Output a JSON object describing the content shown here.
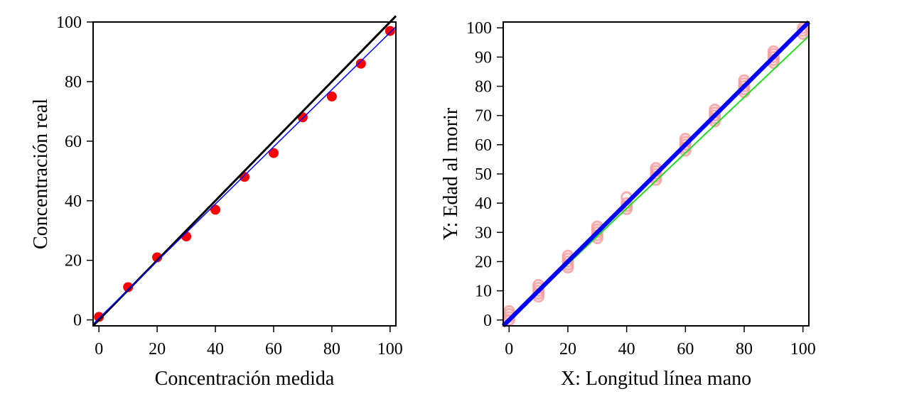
{
  "chart_data": [
    {
      "type": "scatter",
      "title": "",
      "xlabel": "Concentración medida",
      "ylabel": "Concentración real",
      "xlim": [
        -2,
        102
      ],
      "ylim": [
        -2,
        100
      ],
      "x_ticks": [
        "0",
        "20",
        "40",
        "60",
        "80",
        "100"
      ],
      "y_ticks": [
        "0",
        "20",
        "40",
        "60",
        "80",
        "100"
      ],
      "grid": false,
      "legend": "none",
      "points_color": "#ff0000",
      "points": [
        [
          0,
          1
        ],
        [
          10,
          11
        ],
        [
          20,
          21
        ],
        [
          30,
          28
        ],
        [
          40,
          37
        ],
        [
          50,
          48
        ],
        [
          60,
          56
        ],
        [
          70,
          68
        ],
        [
          80,
          75
        ],
        [
          90,
          86
        ],
        [
          100,
          97
        ]
      ],
      "lines": [
        {
          "color": "#000000",
          "width": 3,
          "from": [
            -2,
            -2
          ],
          "to": [
            102,
            102
          ]
        },
        {
          "color": "#0000ff",
          "width": 1.5,
          "from": [
            -2,
            -1.4
          ],
          "to": [
            102,
            98.4
          ]
        }
      ]
    },
    {
      "type": "scatter",
      "title": "",
      "xlabel": "X: Longitud línea mano",
      "ylabel": "Y: Edad al morir",
      "xlim": [
        -2,
        102
      ],
      "ylim": [
        -2,
        102
      ],
      "x_ticks": [
        "0",
        "20",
        "40",
        "60",
        "80",
        "100"
      ],
      "y_ticks": [
        "0",
        "10",
        "20",
        "30",
        "40",
        "50",
        "60",
        "70",
        "80",
        "90",
        "100"
      ],
      "grid": false,
      "legend": "none",
      "points_color": "#f4a0a0",
      "points": [
        [
          0,
          0
        ],
        [
          0,
          1
        ],
        [
          0,
          2
        ],
        [
          0,
          3
        ],
        [
          10,
          8
        ],
        [
          10,
          9
        ],
        [
          10,
          10
        ],
        [
          10,
          11
        ],
        [
          10,
          12
        ],
        [
          20,
          18
        ],
        [
          20,
          19
        ],
        [
          20,
          20
        ],
        [
          20,
          21
        ],
        [
          20,
          22
        ],
        [
          30,
          28
        ],
        [
          30,
          29
        ],
        [
          30,
          30
        ],
        [
          30,
          31
        ],
        [
          30,
          32
        ],
        [
          40,
          38
        ],
        [
          40,
          39
        ],
        [
          40,
          40
        ],
        [
          40,
          42
        ],
        [
          50,
          48
        ],
        [
          50,
          49
        ],
        [
          50,
          50
        ],
        [
          50,
          51
        ],
        [
          50,
          52
        ],
        [
          60,
          58
        ],
        [
          60,
          59
        ],
        [
          60,
          60
        ],
        [
          60,
          61
        ],
        [
          60,
          62
        ],
        [
          70,
          68
        ],
        [
          70,
          69
        ],
        [
          70,
          70
        ],
        [
          70,
          71
        ],
        [
          70,
          72
        ],
        [
          80,
          78
        ],
        [
          80,
          79
        ],
        [
          80,
          80
        ],
        [
          80,
          81
        ],
        [
          80,
          82
        ],
        [
          90,
          88
        ],
        [
          90,
          89
        ],
        [
          90,
          90
        ],
        [
          90,
          91
        ],
        [
          90,
          92
        ],
        [
          100,
          98
        ],
        [
          100,
          99
        ],
        [
          100,
          100
        ]
      ],
      "lines": [
        {
          "color": "#22dd22",
          "width": 2,
          "from": [
            -2,
            -1.8
          ],
          "to": [
            102,
            97.2
          ]
        },
        {
          "color": "#0000ff",
          "width": 6,
          "from": [
            -2,
            -2
          ],
          "to": [
            102,
            102
          ]
        }
      ]
    }
  ]
}
